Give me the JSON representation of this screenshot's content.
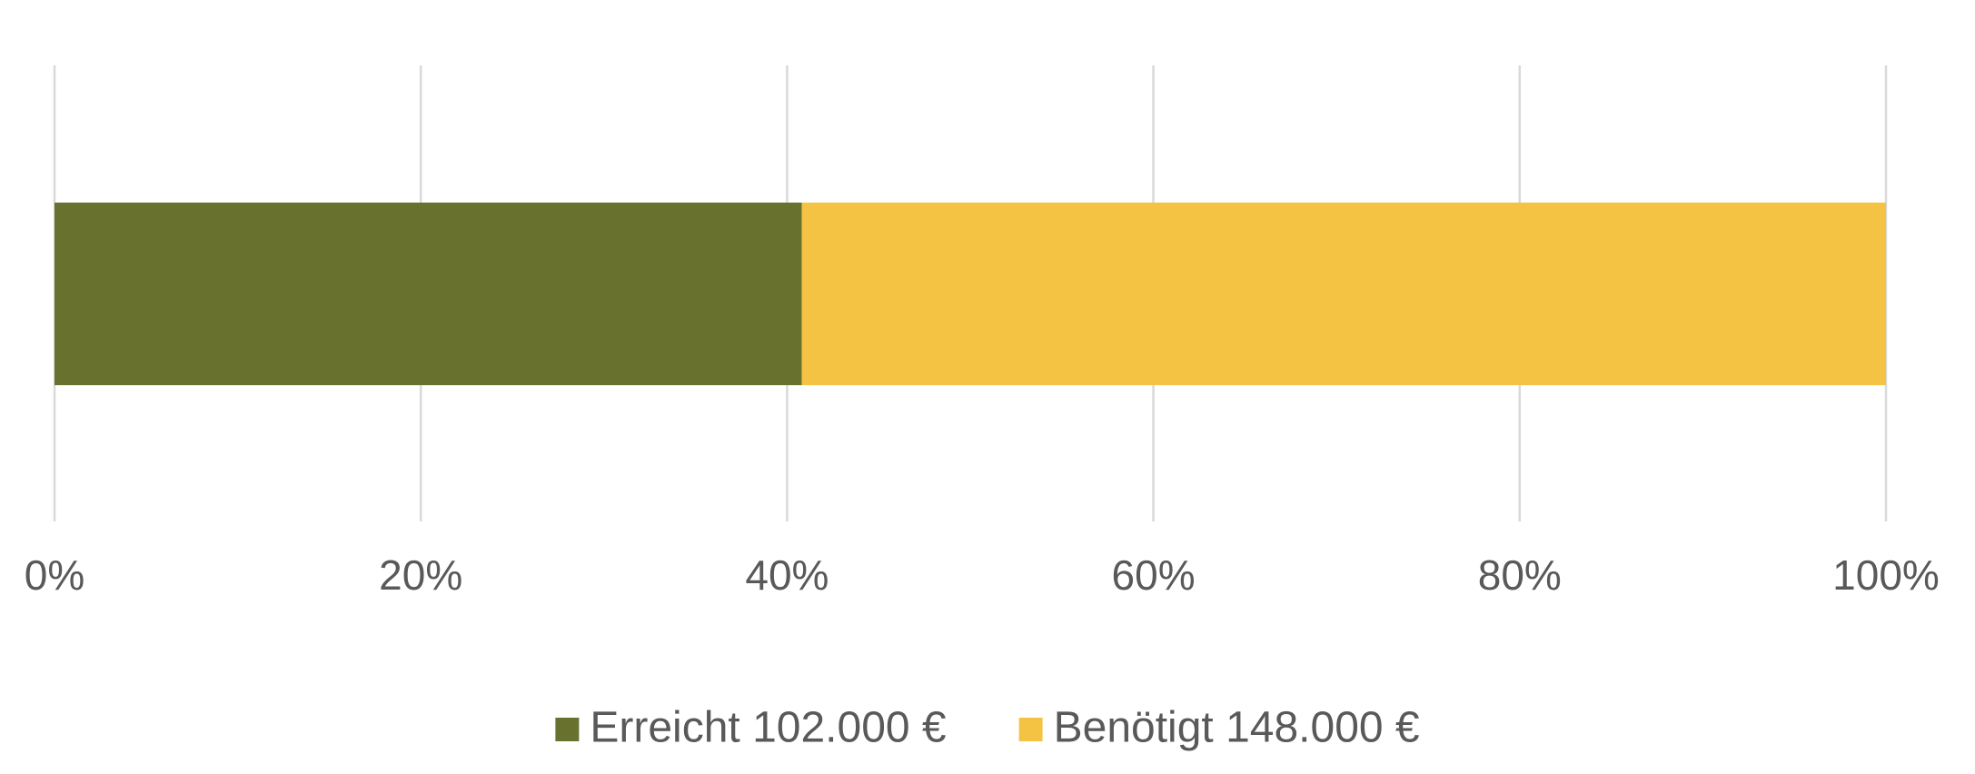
{
  "chart_data": {
    "type": "stacked_bar_horizontal",
    "categories": [
      null
    ],
    "series": [
      {
        "name": "Erreicht 102.000 €",
        "color": "#68722e",
        "values": [
          40.8
        ]
      },
      {
        "name": "Benötigt 148.000 €",
        "color": "#f4c343",
        "values": [
          59.2
        ]
      }
    ],
    "xlim": [
      0,
      100
    ],
    "xticks": [
      {
        "value": 0,
        "label": "0%"
      },
      {
        "value": 20,
        "label": "20%"
      },
      {
        "value": 40,
        "label": "40%"
      },
      {
        "value": 60,
        "label": "60%"
      },
      {
        "value": 80,
        "label": "80%"
      },
      {
        "value": 100,
        "label": "100%"
      }
    ],
    "grid": true,
    "legend": "bottom"
  }
}
